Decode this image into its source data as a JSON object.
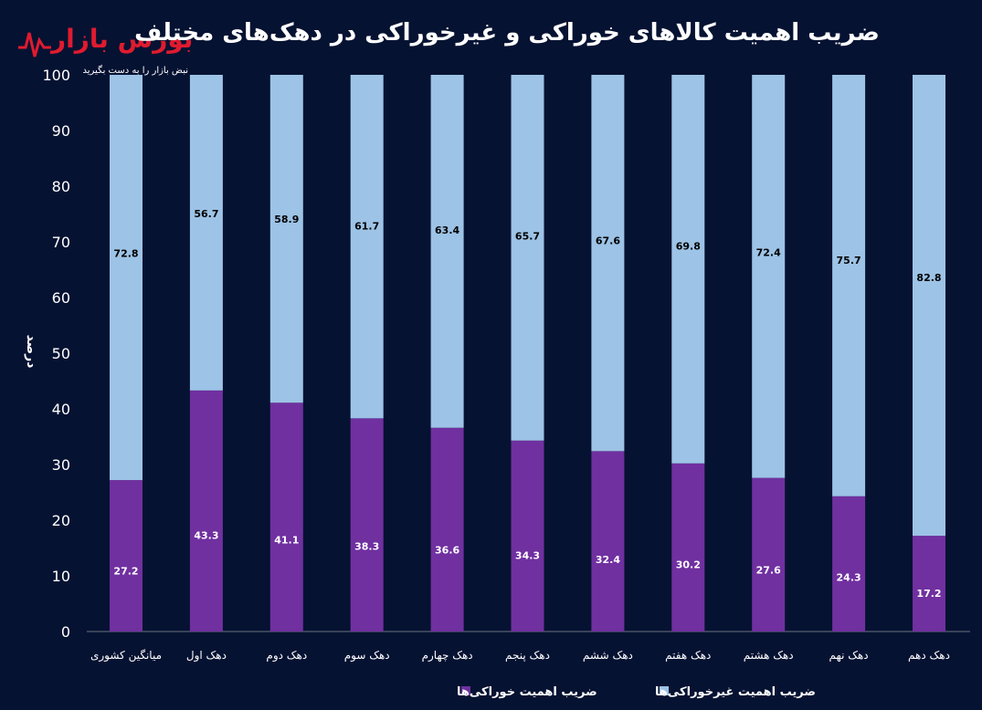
{
  "logo": {
    "name": "بورس بازار",
    "tagline": "نبض بازار را به دست بگیرید"
  },
  "chart_data": {
    "type": "bar",
    "stacked": true,
    "title": "ضریب اهمیت کالاهای خوراکی و غیرخوراکی در دهک‌های مختلف",
    "ylabel": "درصد",
    "xlabel": "",
    "ylim": [
      0,
      100
    ],
    "yticks": [
      0,
      10,
      20,
      30,
      40,
      50,
      60,
      70,
      80,
      90,
      100
    ],
    "categories": [
      "میانگین کشوری",
      "دهک اول",
      "دهک دوم",
      "دهک سوم",
      "دهک چهارم",
      "دهک پنجم",
      "دهک ششم",
      "دهک هفتم",
      "دهک هشتم",
      "دهک نهم",
      "دهک دهم"
    ],
    "series": [
      {
        "name": "ضریب اهمیت خوراکی‌ها",
        "color": "#7030a0",
        "label_color": "#ffffff",
        "values": [
          27.2,
          43.3,
          41.1,
          38.3,
          36.6,
          34.3,
          32.4,
          30.2,
          27.6,
          24.3,
          17.2
        ]
      },
      {
        "name": "ضریب اهمیت غیرخوراکی‌ها",
        "color": "#9dc3e6",
        "label_color": "#000000",
        "values": [
          72.8,
          56.7,
          58.9,
          61.7,
          63.4,
          65.7,
          67.6,
          69.8,
          72.4,
          75.7,
          82.8
        ]
      }
    ],
    "legend_position": "bottom",
    "grid": false,
    "colors": {
      "background": "#061232",
      "text": "#ffffff",
      "axis": "#6b7280"
    }
  }
}
